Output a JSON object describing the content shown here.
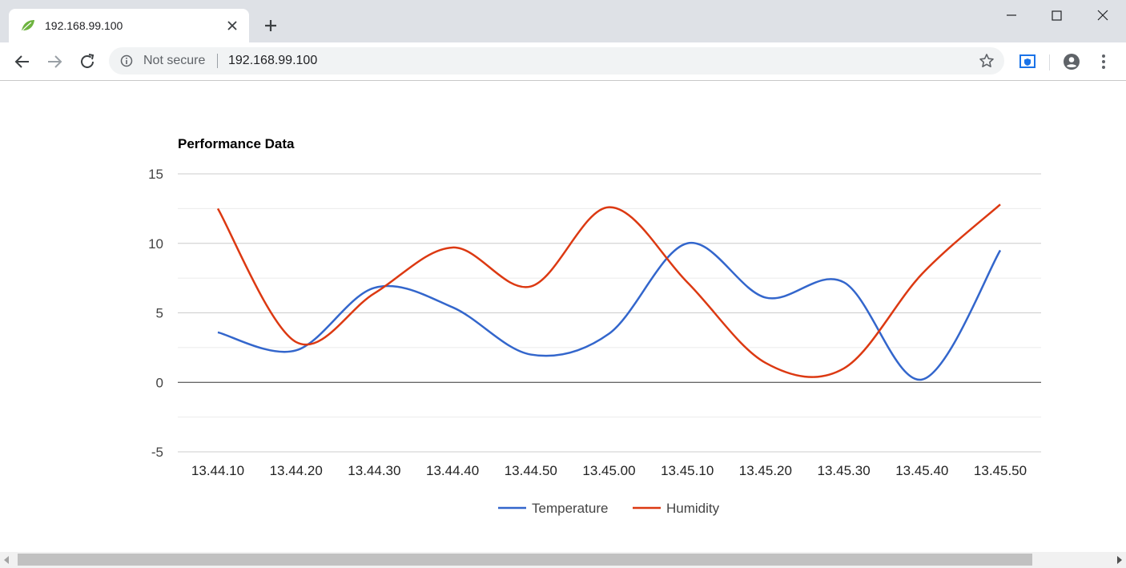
{
  "browser": {
    "tab_title": "192.168.99.100",
    "security_label": "Not secure",
    "url": "192.168.99.100"
  },
  "icons": {
    "tab_favicon": "leaf-icon",
    "tab_close": "close-icon",
    "new_tab": "plus-icon",
    "back": "back-arrow-icon",
    "forward": "forward-arrow-icon",
    "reload": "reload-icon",
    "info": "info-icon",
    "bookmark": "star-icon",
    "extension": "shield-extension-icon",
    "profile": "account-icon",
    "menu": "kebab-menu-icon"
  },
  "colors": {
    "temperature": "#3366cc",
    "humidity": "#dc3912",
    "favicon": "#6db33f"
  },
  "chart_data": {
    "type": "line",
    "title": "Performance Data",
    "smooth": true,
    "categories": [
      "13.44.10",
      "13.44.20",
      "13.44.30",
      "13.44.40",
      "13.44.50",
      "13.45.00",
      "13.45.10",
      "13.45.20",
      "13.45.30",
      "13.45.40",
      "13.45.50"
    ],
    "ylim": [
      -5,
      15
    ],
    "yticks": [
      -5,
      0,
      5,
      10,
      15
    ],
    "grid": true,
    "legend": "bottom",
    "series": [
      {
        "name": "Temperature",
        "values": [
          3.6,
          2.3,
          6.8,
          5.4,
          2.0,
          3.5,
          10.0,
          6.1,
          7.2,
          0.2,
          9.5
        ]
      },
      {
        "name": "Humidity",
        "values": [
          12.5,
          2.9,
          6.4,
          9.7,
          6.9,
          12.6,
          7.2,
          1.4,
          1.0,
          7.8,
          12.8
        ]
      }
    ]
  }
}
